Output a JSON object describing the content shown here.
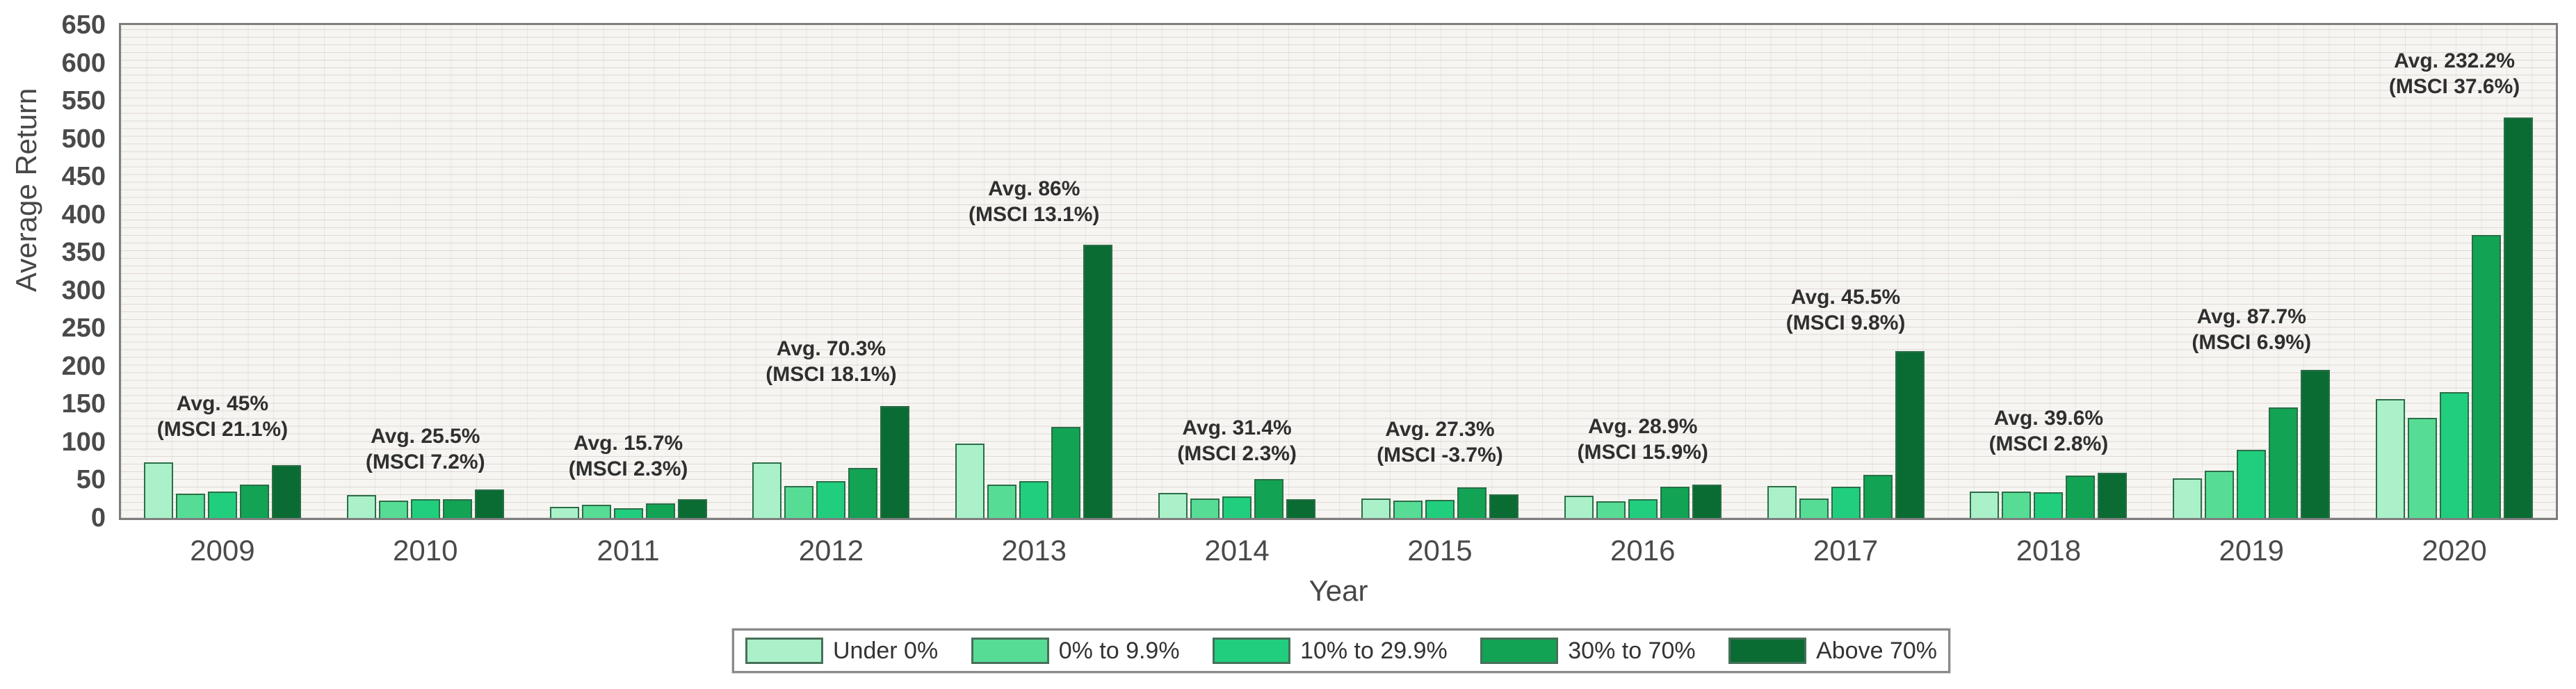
{
  "chart_data": {
    "type": "bar",
    "title": "",
    "xlabel": "Year",
    "ylabel": "Average Return",
    "ylim": [
      0,
      650
    ],
    "ytick_step": 50,
    "yticks": [
      0,
      50,
      100,
      150,
      200,
      250,
      300,
      350,
      400,
      450,
      500,
      550,
      600,
      650
    ],
    "grid": true,
    "legend_position": "bottom",
    "categories": [
      "2009",
      "2010",
      "2011",
      "2012",
      "2013",
      "2014",
      "2015",
      "2016",
      "2017",
      "2018",
      "2019",
      "2020"
    ],
    "series": [
      {
        "name": "Under 0%",
        "color": "#aaf0c9",
        "values": [
          73,
          30,
          15,
          73,
          98,
          33,
          26,
          29,
          42,
          35,
          52,
          157
        ]
      },
      {
        "name": "0% to 9.9%",
        "color": "#57dc95",
        "values": [
          32,
          23,
          17,
          42,
          44,
          26,
          23,
          22,
          26,
          35,
          62,
          132
        ]
      },
      {
        "name": "10% to 29.9%",
        "color": "#21ce7e",
        "values": [
          35,
          25,
          13,
          49,
          49,
          28,
          24,
          25,
          41,
          34,
          90,
          166
        ]
      },
      {
        "name": "30% to 70%",
        "color": "#12a355",
        "values": [
          44,
          25,
          19,
          66,
          120,
          51,
          40,
          41,
          57,
          56,
          146,
          373
        ]
      },
      {
        "name": "Above 70%",
        "color": "#0a6b33",
        "values": [
          70,
          38,
          25,
          148,
          360,
          25,
          31,
          44,
          220,
          60,
          195,
          528
        ]
      }
    ],
    "annotations": [
      {
        "year": "2009",
        "line1": "Avg. 45%",
        "line2": "(MSCI 21.1%)",
        "bottom_value": 100
      },
      {
        "year": "2010",
        "line1": "Avg. 25.5%",
        "line2": "(MSCI 7.2%)",
        "bottom_value": 57
      },
      {
        "year": "2011",
        "line1": "Avg. 15.7%",
        "line2": "(MSCI 2.3%)",
        "bottom_value": 48
      },
      {
        "year": "2012",
        "line1": "Avg. 70.3%",
        "line2": "(MSCI 18.1%)",
        "bottom_value": 172
      },
      {
        "year": "2013",
        "line1": "Avg. 86%",
        "line2": "(MSCI 13.1%)",
        "bottom_value": 383
      },
      {
        "year": "2014",
        "line1": "Avg. 31.4%",
        "line2": "(MSCI 2.3%)",
        "bottom_value": 68
      },
      {
        "year": "2015",
        "line1": "Avg. 27.3%",
        "line2": "(MSCI -3.7%)",
        "bottom_value": 66
      },
      {
        "year": "2016",
        "line1": "Avg. 28.9%",
        "line2": "(MSCI 15.9%)",
        "bottom_value": 70
      },
      {
        "year": "2017",
        "line1": "Avg. 45.5%",
        "line2": "(MSCI 9.8%)",
        "bottom_value": 240
      },
      {
        "year": "2018",
        "line1": "Avg. 39.6%",
        "line2": "(MSCI 2.8%)",
        "bottom_value": 81
      },
      {
        "year": "2019",
        "line1": "Avg. 87.7%",
        "line2": "(MSCI 6.9%)",
        "bottom_value": 215
      },
      {
        "year": "2020",
        "line1": "Avg. 232.2%",
        "line2": "(MSCI 37.6%)",
        "bottom_value": 552
      }
    ]
  },
  "colors": {
    "plot_background": "#f6f5f2",
    "axis_frame": "#7e7e7e",
    "bar_border": "#2b6e46",
    "tick_text": "#4a4a4a",
    "annotation_text": "#2f2f2f"
  }
}
